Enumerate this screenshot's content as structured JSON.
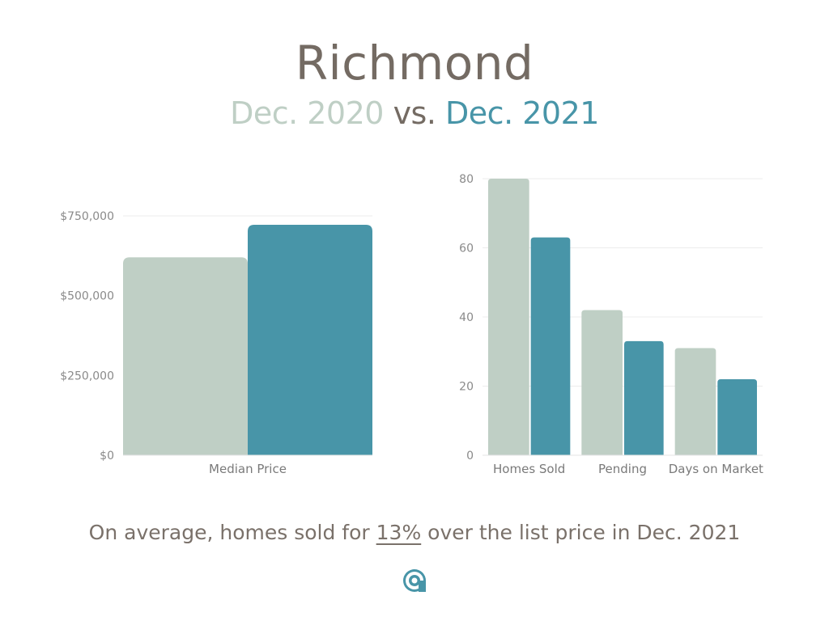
{
  "title": "Richmond",
  "subtitle": {
    "period_a": "Dec. 2020",
    "vs": "vs.",
    "period_b": "Dec. 2021"
  },
  "colors": {
    "dec_2020": "#bfcfc5",
    "dec_2021": "#4895a8",
    "title": "#746b63"
  },
  "chart_data": [
    {
      "type": "bar",
      "categories": [
        "Median Price"
      ],
      "series": [
        {
          "values": [
            620000
          ]
        },
        {
          "values": [
            722000
          ]
        }
      ],
      "ylim": [
        0,
        750000
      ],
      "yticks": [
        0,
        250000,
        500000,
        750000
      ],
      "ytick_labels": [
        "$0",
        "$250,000",
        "$500,000",
        "$750,000"
      ],
      "grid": true,
      "legend": "none"
    },
    {
      "type": "bar",
      "categories": [
        "Homes Sold",
        "Pending",
        "Days on Market"
      ],
      "series": [
        {
          "values": [
            80,
            42,
            31
          ]
        },
        {
          "values": [
            63,
            33,
            22
          ]
        }
      ],
      "ylim": [
        0,
        80
      ],
      "yticks": [
        0,
        20,
        40,
        60,
        80
      ],
      "ytick_labels": [
        "0",
        "20",
        "40",
        "60",
        "80"
      ],
      "grid": true,
      "legend": "none"
    }
  ],
  "footer": {
    "prefix": "On average, homes sold for ",
    "percent": "13%",
    "suffix": " over the list price in Dec. 2021"
  },
  "logo": {
    "icon": "brand-logo-icon",
    "color": "#4895a8"
  }
}
